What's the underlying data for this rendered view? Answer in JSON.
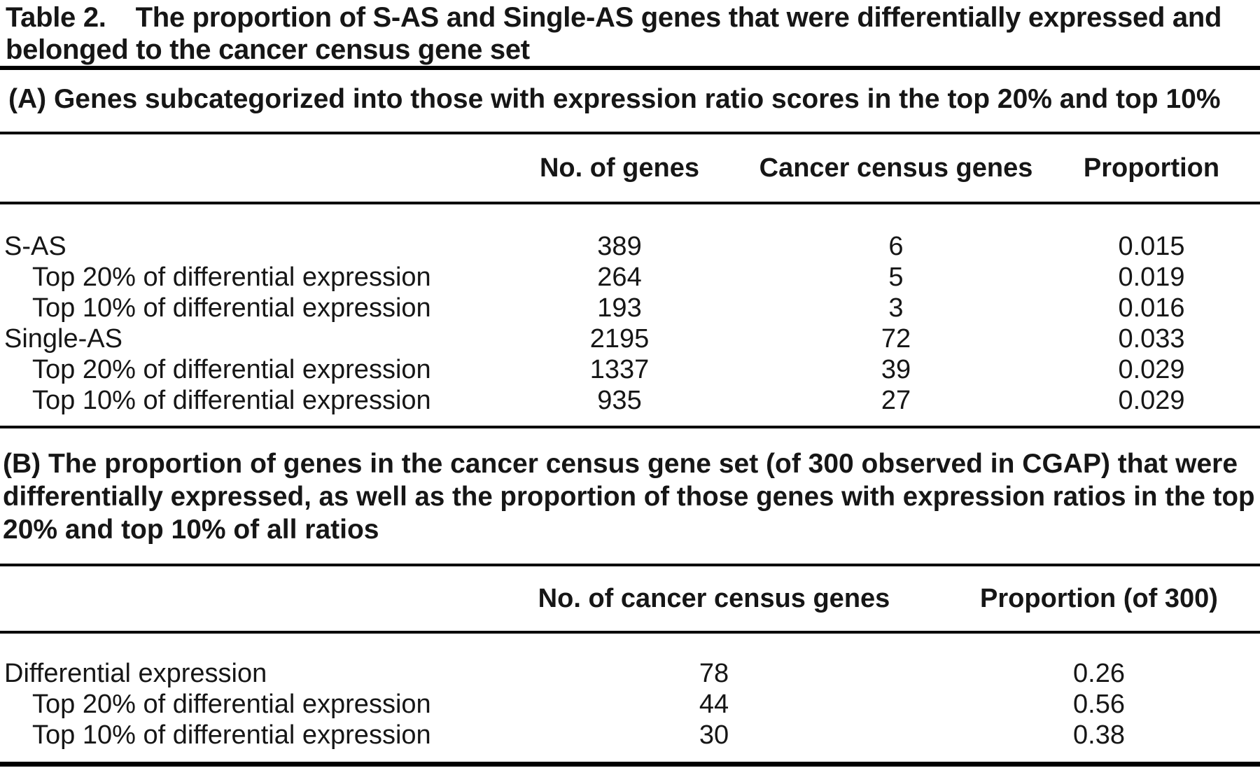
{
  "title": {
    "label": "Table 2.",
    "line1": "The proportion of S-AS and Single-AS genes that were differentially expressed and",
    "line2": "belonged to the cancer census gene set"
  },
  "section_a": {
    "heading": "(A) Genes subcategorized into those with expression ratio scores in the top 20% and top 10%",
    "columns": [
      "No. of genes",
      "Cancer census genes",
      "Proportion"
    ],
    "rows": [
      {
        "label": "S-AS",
        "no_of_genes": "389",
        "census_genes": "6",
        "proportion": "0.015"
      },
      {
        "label": "Top 20% of differential expression",
        "no_of_genes": "264",
        "census_genes": "5",
        "proportion": "0.019"
      },
      {
        "label": "Top 10% of differential expression",
        "no_of_genes": "193",
        "census_genes": "3",
        "proportion": "0.016"
      },
      {
        "label": "Single-AS",
        "no_of_genes": "2195",
        "census_genes": "72",
        "proportion": "0.033"
      },
      {
        "label": "Top 20% of differential expression",
        "no_of_genes": "1337",
        "census_genes": "39",
        "proportion": "0.029"
      },
      {
        "label": "Top 10% of differential expression",
        "no_of_genes": "935",
        "census_genes": "27",
        "proportion": "0.029"
      }
    ]
  },
  "section_b": {
    "heading_line1": "(B) The proportion of genes in the cancer census gene set (of 300 observed in CGAP) that were",
    "heading_line2": "differentially expressed, as well as the proportion of those genes with expression ratios in the top",
    "heading_line3": "20% and top 10% of all ratios",
    "columns": [
      "No. of cancer census genes",
      "Proportion (of 300)"
    ],
    "rows": [
      {
        "label": "Differential expression",
        "census_genes": "78",
        "proportion": "0.26"
      },
      {
        "label": "Top 20% of differential expression",
        "census_genes": "44",
        "proportion": "0.56"
      },
      {
        "label": "Top 10% of differential expression",
        "census_genes": "30",
        "proportion": "0.38"
      }
    ]
  }
}
